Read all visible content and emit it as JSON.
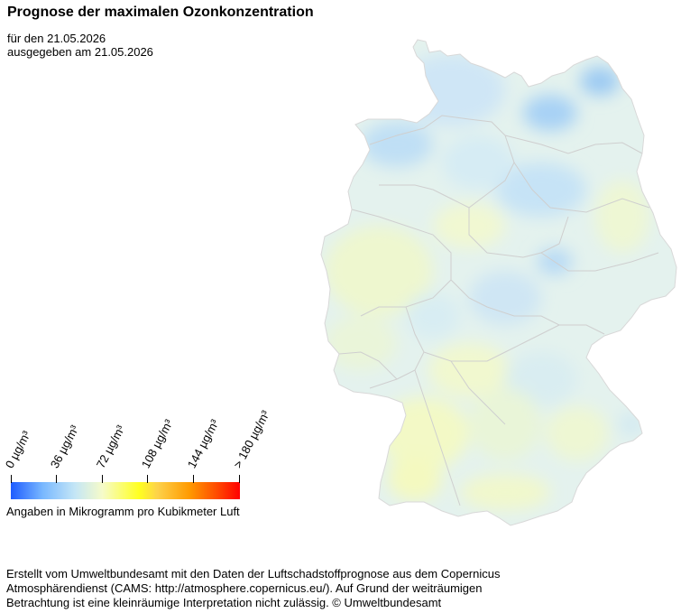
{
  "title": "Prognose der maximalen Ozonkonzentration",
  "forecast_for": "für den 21.05.2026",
  "issued": "ausgegeben am 21.05.2026",
  "legend": {
    "ticks": [
      "0  µg/m³",
      "36  µg/m³",
      "72  µg/m³",
      "108  µg/m³",
      "144  µg/m³",
      "> 180  µg/m³"
    ],
    "tick_values": [
      0,
      36,
      72,
      108,
      144,
      180
    ],
    "colors": [
      "#1e5cff",
      "#79b8ff",
      "#c4e6f6",
      "#f6fbc9",
      "#ffff20",
      "#fdd24a",
      "#ff9a00",
      "#ff4a00",
      "#ff0000"
    ],
    "note": "Angaben in Mikrogramm pro Kubikmeter Luft"
  },
  "footer": {
    "line1": "Erstellt vom Umweltbundesamt mit den Daten der Luftschadstoffprognose aus dem Copernicus",
    "line2": "Atmosphärendienst (CAMS: http://atmosphere.copernicus.eu/). Auf Grund der weiträumigen",
    "line3": "Betrachtung ist eine kleinräumige Interpretation nicht zulässig. © Umweltbundesamt"
  }
}
